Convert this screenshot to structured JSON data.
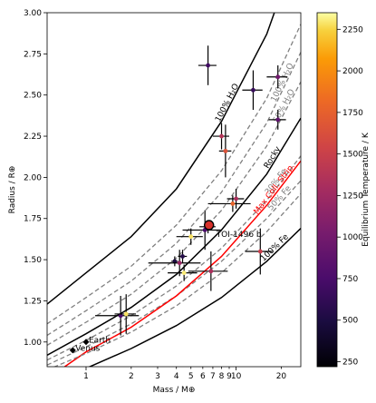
{
  "chart_data": {
    "type": "scatter",
    "xlabel": "Mass / M⊕",
    "ylabel": "Radius / R⊕",
    "xscale": "log",
    "xlim": [
      0.55,
      27
    ],
    "ylim": [
      0.85,
      3.0
    ],
    "xticks": [
      {
        "value": 1,
        "label": "1"
      },
      {
        "value": 2,
        "label": "2"
      },
      {
        "value": 3,
        "label": "3"
      },
      {
        "value": 4,
        "label": "4"
      },
      {
        "value": 5,
        "label": "5"
      },
      {
        "value": 6,
        "label": "6"
      },
      {
        "value": 7,
        "label": "7"
      },
      {
        "value": 8,
        "label": "8"
      },
      {
        "value": 9,
        "label": "9"
      },
      {
        "value": 10,
        "label": "10"
      },
      {
        "value": 20,
        "label": "20"
      }
    ],
    "yticks": [
      {
        "value": 1.0,
        "label": "1.00"
      },
      {
        "value": 1.25,
        "label": "1.25"
      },
      {
        "value": 1.5,
        "label": "1.50"
      },
      {
        "value": 1.75,
        "label": "1.75"
      },
      {
        "value": 2.0,
        "label": "2.00"
      },
      {
        "value": 2.25,
        "label": "2.25"
      },
      {
        "value": 2.5,
        "label": "2.50"
      },
      {
        "value": 2.75,
        "label": "2.75"
      },
      {
        "value": 3.0,
        "label": "3.00"
      }
    ],
    "colorbar": {
      "label": "Equilibrium Temperature / K",
      "min": 220,
      "max": 2350,
      "ticks": [
        {
          "value": 250,
          "label": "250"
        },
        {
          "value": 500,
          "label": "500"
        },
        {
          "value": 750,
          "label": "750"
        },
        {
          "value": 1000,
          "label": "1000"
        },
        {
          "value": 1250,
          "label": "1250"
        },
        {
          "value": 1500,
          "label": "1500"
        },
        {
          "value": 1750,
          "label": "1750"
        },
        {
          "value": 2000,
          "label": "2000"
        },
        {
          "value": 2250,
          "label": "2250"
        }
      ]
    },
    "curves": [
      {
        "label": "100% H₂O",
        "style": "solid",
        "color": "#000000",
        "points": [
          [
            0.55,
            1.23
          ],
          [
            1,
            1.42
          ],
          [
            2,
            1.64
          ],
          [
            4,
            1.93
          ],
          [
            8,
            2.34
          ],
          [
            16,
            2.87
          ],
          [
            18,
            3.0
          ]
        ]
      },
      {
        "label": "",
        "style": "dashed",
        "color": "#808080",
        "points": [
          [
            0.55,
            1.11
          ],
          [
            1,
            1.27
          ],
          [
            2,
            1.46
          ],
          [
            4,
            1.71
          ],
          [
            8,
            2.04
          ],
          [
            16,
            2.48
          ],
          [
            27,
            2.93
          ]
        ]
      },
      {
        "label": "100% H₂O",
        "style": "dashed",
        "color": "#808080",
        "points": [
          [
            0.55,
            1.04
          ],
          [
            1,
            1.19
          ],
          [
            2,
            1.37
          ],
          [
            4,
            1.6
          ],
          [
            8,
            1.91
          ],
          [
            16,
            2.33
          ],
          [
            27,
            2.76
          ]
        ]
      },
      {
        "label": "50% H₂O",
        "style": "dashed",
        "color": "#808080",
        "points": [
          [
            0.55,
            0.98
          ],
          [
            1,
            1.12
          ],
          [
            2,
            1.29
          ],
          [
            4,
            1.51
          ],
          [
            8,
            1.8
          ],
          [
            16,
            2.19
          ],
          [
            27,
            2.58
          ]
        ]
      },
      {
        "label": "Rocky",
        "style": "solid",
        "color": "#000000",
        "points": [
          [
            0.55,
            0.92
          ],
          [
            1,
            1.05
          ],
          [
            2,
            1.21
          ],
          [
            4,
            1.41
          ],
          [
            8,
            1.68
          ],
          [
            16,
            2.02
          ],
          [
            27,
            2.36
          ]
        ]
      },
      {
        "label": "30% Fe",
        "style": "dashed",
        "color": "#808080",
        "points": [
          [
            0.55,
            0.89
          ],
          [
            1,
            1.01
          ],
          [
            2,
            1.16
          ],
          [
            4,
            1.34
          ],
          [
            8,
            1.57
          ],
          [
            16,
            1.86
          ],
          [
            27,
            2.13
          ]
        ]
      },
      {
        "label": "50% Fe",
        "style": "dashed",
        "color": "#808080",
        "points": [
          [
            0.55,
            0.86
          ],
          [
            1,
            0.97
          ],
          [
            2,
            1.11
          ],
          [
            4,
            1.28
          ],
          [
            8,
            1.49
          ],
          [
            16,
            1.75
          ],
          [
            27,
            1.98
          ]
        ]
      },
      {
        "label": "Max Coll. Strip.",
        "style": "solid",
        "color": "#ff0000",
        "points": [
          [
            0.72,
            0.85
          ],
          [
            1,
            0.94
          ],
          [
            2,
            1.09
          ],
          [
            4,
            1.28
          ],
          [
            8,
            1.52
          ],
          [
            16,
            1.83
          ],
          [
            27,
            2.1
          ]
        ]
      },
      {
        "label": "70% Fe",
        "style": "dashed",
        "color": "#808080",
        "points": [
          [
            0.55,
            0.83
          ],
          [
            1,
            0.93
          ],
          [
            2,
            1.06
          ],
          [
            4,
            1.22
          ],
          [
            8,
            1.42
          ],
          [
            16,
            1.67
          ],
          [
            27,
            1.9
          ]
        ]
      },
      {
        "label": "100% Fe",
        "style": "solid",
        "color": "#000000",
        "points": [
          [
            0.55,
            0.75
          ],
          [
            1,
            0.84
          ],
          [
            2,
            0.96
          ],
          [
            4,
            1.1
          ],
          [
            8,
            1.27
          ],
          [
            16,
            1.49
          ],
          [
            27,
            1.69
          ]
        ]
      }
    ],
    "planets": [
      {
        "x": 6.5,
        "y": 2.68,
        "xerr": [
          0.9,
          0.9
        ],
        "yerr": [
          0.12,
          0.12
        ],
        "temp": 650
      },
      {
        "x": 13.0,
        "y": 2.53,
        "xerr": [
          2.0,
          2.0
        ],
        "yerr": [
          0.12,
          0.12
        ],
        "temp": 600
      },
      {
        "x": 19.0,
        "y": 2.61,
        "xerr": [
          3.0,
          3.0
        ],
        "yerr": [
          0.07,
          0.07
        ],
        "temp": 900
      },
      {
        "x": 19.0,
        "y": 2.35,
        "xerr": [
          2.5,
          2.5
        ],
        "yerr": [
          0.06,
          0.06
        ],
        "temp": 800
      },
      {
        "x": 8.0,
        "y": 2.25,
        "xerr": [
          1.0,
          1.0
        ],
        "yerr": [
          0.08,
          0.08
        ],
        "temp": 1250
      },
      {
        "x": 8.5,
        "y": 2.16,
        "xerr": [
          0.8,
          0.8
        ],
        "yerr": [
          0.16,
          0.16
        ],
        "temp": 1500
      },
      {
        "x": 10.0,
        "y": 1.87,
        "xerr": [
          1.3,
          1.3
        ],
        "yerr": [
          0.06,
          0.06
        ],
        "temp": 1200
      },
      {
        "x": 9.5,
        "y": 1.84,
        "xerr": [
          3.0,
          3.0
        ],
        "yerr": [
          0.05,
          0.05
        ],
        "temp": 1600
      },
      {
        "x": 6.5,
        "y": 1.7,
        "xerr": [
          0.8,
          0.8
        ],
        "yerr": [
          0.04,
          0.04
        ],
        "temp": 1450
      },
      {
        "x": 6.2,
        "y": 1.68,
        "xerr": [
          1.8,
          1.8
        ],
        "yerr": [
          0.12,
          0.12
        ],
        "temp": 700
      },
      {
        "x": 5.0,
        "y": 1.64,
        "xerr": [
          1.0,
          1.0
        ],
        "yerr": [
          0.05,
          0.05
        ],
        "temp": 2200
      },
      {
        "x": 4.4,
        "y": 1.52,
        "xerr": [
          0.3,
          0.3
        ],
        "yerr": [
          0.04,
          0.04
        ],
        "temp": 500
      },
      {
        "x": 3.9,
        "y": 1.49,
        "xerr": [
          0.2,
          0.2
        ],
        "yerr": [
          0.03,
          0.03
        ],
        "temp": 450
      },
      {
        "x": 4.2,
        "y": 1.48,
        "xerr": [
          1.6,
          1.6
        ],
        "yerr": [
          0.08,
          0.08
        ],
        "temp": 1100
      },
      {
        "x": 4.5,
        "y": 1.42,
        "xerr": [
          1.0,
          1.0
        ],
        "yerr": [
          0.05,
          0.05
        ],
        "temp": 2250
      },
      {
        "x": 6.8,
        "y": 1.43,
        "xerr": [
          2.0,
          2.0
        ],
        "yerr": [
          0.12,
          0.12
        ],
        "temp": 1200
      },
      {
        "x": 1.7,
        "y": 1.16,
        "xerr": [
          0.55,
          0.55
        ],
        "yerr": [
          0.12,
          0.12
        ],
        "temp": 700
      },
      {
        "x": 1.85,
        "y": 1.17,
        "xerr": [
          0.3,
          0.3
        ],
        "yerr": [
          0.12,
          0.12
        ],
        "temp": 2200
      },
      {
        "x": 14.5,
        "y": 1.55,
        "xerr": [
          3.0,
          3.0
        ],
        "yerr": [
          0.14,
          0.14
        ],
        "temp": 1350
      }
    ],
    "highlight": {
      "label": "TOI-1496 b",
      "x": 6.6,
      "y": 1.71,
      "temp": 1420,
      "color": "#d7312b"
    },
    "reference": [
      {
        "label": "Earth",
        "x": 1.0,
        "y": 1.0
      },
      {
        "label": "Venus",
        "x": 0.815,
        "y": 0.95
      }
    ]
  }
}
